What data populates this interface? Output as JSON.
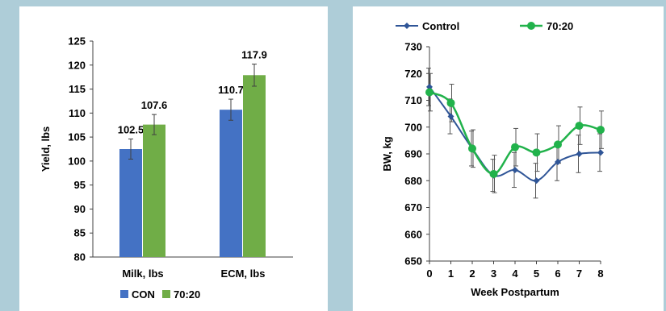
{
  "chart_data": [
    {
      "type": "bar",
      "title": "",
      "xlabel": "",
      "ylabel": "Yield, lbs",
      "ylim": [
        80,
        125
      ],
      "yticks": [
        80,
        85,
        90,
        95,
        100,
        105,
        110,
        115,
        120,
        125
      ],
      "categories": [
        "Milk, lbs",
        "ECM, lbs"
      ],
      "series": [
        {
          "name": "CON",
          "color": "#4472c4",
          "values": [
            102.5,
            110.7
          ],
          "errors": [
            2.1,
            2.2
          ],
          "labels": [
            "102.5",
            "110.7"
          ]
        },
        {
          "name": "70:20",
          "color": "#70ad47",
          "values": [
            107.6,
            117.9
          ],
          "errors": [
            2.1,
            2.3
          ],
          "labels": [
            "107.6",
            "117.9"
          ]
        }
      ],
      "legend": "bottom",
      "grid": false
    },
    {
      "type": "line",
      "title": "",
      "xlabel": "Week Postpartum",
      "ylabel": "BW, kg",
      "xlim": [
        0,
        8
      ],
      "ylim": [
        650,
        730
      ],
      "x": [
        0,
        1,
        2,
        3,
        4,
        5,
        6,
        7,
        8
      ],
      "yticks": [
        650,
        660,
        670,
        680,
        690,
        700,
        710,
        720,
        730
      ],
      "series": [
        {
          "name": "Control",
          "color": "#2f5597",
          "marker": "diamond",
          "values": [
            715,
            704,
            692,
            682,
            684,
            680,
            687,
            690,
            690.5
          ],
          "errors": [
            7,
            6.5,
            6.5,
            6,
            6.5,
            6.5,
            7,
            7,
            7
          ]
        },
        {
          "name": "70:20",
          "color": "#21b24b",
          "marker": "circle",
          "values": [
            713,
            709,
            692,
            682.5,
            692.5,
            690.5,
            693.5,
            700.5,
            699
          ],
          "errors": [
            7,
            7,
            7,
            7,
            7,
            7,
            7,
            7,
            7
          ]
        }
      ],
      "legend": "top",
      "grid": false
    }
  ]
}
